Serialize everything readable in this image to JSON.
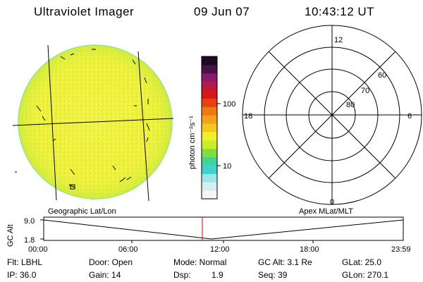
{
  "header": {
    "instrument": "Ultraviolet Imager",
    "date": "09 Jun 07",
    "time": "10:43:12 UT"
  },
  "colorbar": {
    "label": "photon cm⁻²s⁻¹",
    "ticks": [
      "100",
      "10"
    ],
    "colors": [
      "#f5f5f5",
      "#d6f0f0",
      "#9fe6e6",
      "#40d0d0",
      "#3fd49a",
      "#7ee040",
      "#c8ee2a",
      "#f0f028",
      "#f5c81f",
      "#f5a01a",
      "#f07814",
      "#e84010",
      "#d81818",
      "#b81848",
      "#8a1a6a",
      "#4a104a",
      "#1a0a22"
    ]
  },
  "polar": {
    "mlt_labels": [
      "12",
      "18",
      "6",
      "0"
    ],
    "lat_labels": [
      "60",
      "70",
      "80"
    ]
  },
  "timeline": {
    "left_label": "Geographic Lat/Lon",
    "right_label": "Apex MLat/MLT",
    "ylabel": "GC Alt",
    "y_ticks": [
      "9.0",
      "1.8"
    ],
    "x_ticks": [
      "00:00",
      "06:00",
      "12:00",
      "18:00",
      "23:59"
    ]
  },
  "status": {
    "flt": "Flt: LBHL",
    "ip": "IP: 36.0",
    "door": "Door: Open",
    "gain": "Gain: 14",
    "mode": "Mode: Normal",
    "dsp_label": "Dsp:",
    "dsp_value": "1.9",
    "gcalt": "GC Alt: 3.1 Re",
    "seq": "Seq: 39",
    "glat": "GLat: 25.0",
    "glon": "GLon: 270.1"
  }
}
